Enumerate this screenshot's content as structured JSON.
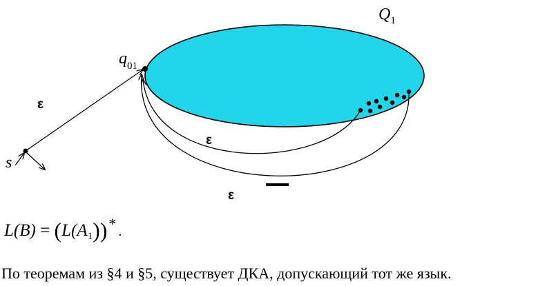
{
  "diagram": {
    "set_label": {
      "letter": "Q",
      "subscript": "1"
    },
    "start_state_label": "s",
    "initial_state_label": {
      "letter": "q",
      "subscript": "01"
    },
    "epsilon_labels": [
      "ε",
      "ε",
      "ε"
    ],
    "colors": {
      "set_fill": "#22d5e8",
      "stroke": "#000000"
    }
  },
  "formula": {
    "lhs": "L(B)",
    "equals": "=",
    "open_paren": "(",
    "inner_L": "L(A",
    "inner_sub": "1",
    "inner_close": "))",
    "star": "*",
    "end": "."
  },
  "sentence": "По теоремам из §4 и §5, существует ДКА, допускающий тот же язык."
}
